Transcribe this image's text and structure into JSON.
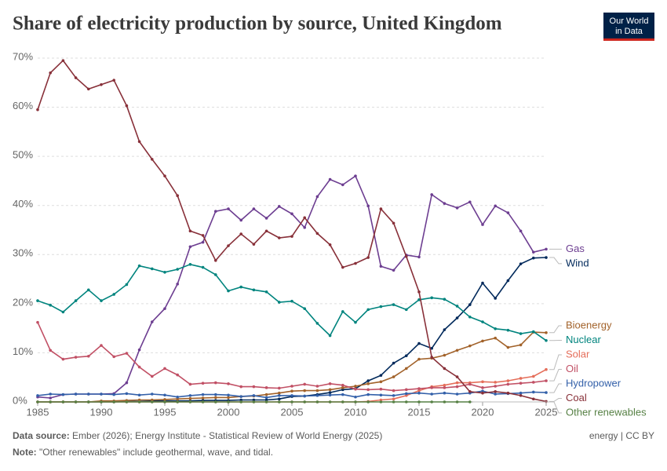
{
  "chart_data": {
    "type": "line",
    "title": "Share of electricity production by source, United Kingdom",
    "logo": [
      "Our World",
      "in Data"
    ],
    "x": [
      1985,
      1986,
      1987,
      1988,
      1989,
      1990,
      1991,
      1992,
      1993,
      1994,
      1995,
      1996,
      1997,
      1998,
      1999,
      2000,
      2001,
      2002,
      2003,
      2004,
      2005,
      2006,
      2007,
      2008,
      2009,
      2010,
      2011,
      2012,
      2013,
      2014,
      2015,
      2016,
      2017,
      2018,
      2019,
      2020,
      2021,
      2022,
      2023,
      2024,
      2025
    ],
    "xlim": [
      1985,
      2025
    ],
    "xticks": [
      1985,
      1990,
      1995,
      2000,
      2005,
      2010,
      2015,
      2020,
      2025
    ],
    "ylim": [
      0,
      70
    ],
    "yticks": [
      {
        "value": 0,
        "label": "0%"
      },
      {
        "value": 10,
        "label": "10%"
      },
      {
        "value": 20,
        "label": "20%"
      },
      {
        "value": 30,
        "label": "30%"
      },
      {
        "value": 40,
        "label": "40%"
      },
      {
        "value": 50,
        "label": "50%"
      },
      {
        "value": 60,
        "label": "60%"
      },
      {
        "value": 70,
        "label": "70%"
      }
    ],
    "grid": true,
    "series": [
      {
        "name": "Gas",
        "color": "#6d3e91",
        "values": [
          1.0,
          0.8,
          1.5,
          1.6,
          1.6,
          1.6,
          1.7,
          3.9,
          10.6,
          16.3,
          19,
          24,
          31.6,
          32.5,
          38.8,
          39.3,
          37,
          39.3,
          37.4,
          39.8,
          38.3,
          35.5,
          41.8,
          45.3,
          44.2,
          46,
          39.9,
          27.6,
          26.8,
          29.9,
          29.5,
          42.2,
          40.4,
          39.5,
          40.7,
          36.1,
          39.9,
          38.5,
          34.8,
          30.5,
          31.1
        ]
      },
      {
        "name": "Wind",
        "color": "#00295b",
        "values": [
          0,
          0,
          0,
          0,
          0,
          0,
          0,
          0.1,
          0.1,
          0.2,
          0.2,
          0.2,
          0.2,
          0.3,
          0.3,
          0.3,
          0.4,
          0.4,
          0.4,
          0.6,
          1.1,
          1.2,
          1.5,
          1.9,
          2.5,
          2.7,
          4.3,
          5.4,
          7.9,
          9.4,
          11.9,
          10.9,
          14.7,
          17.1,
          19.8,
          24.2,
          21.1,
          24.7,
          28.1,
          29.3,
          29.4
        ]
      },
      {
        "name": "Bioenergy",
        "color": "#a2622a",
        "values": [
          0,
          0,
          0,
          0,
          0,
          0.2,
          0.2,
          0.3,
          0.4,
          0.4,
          0.5,
          0.6,
          0.7,
          0.8,
          0.9,
          0.9,
          1.1,
          1.2,
          1.5,
          1.8,
          2.2,
          2.3,
          2.3,
          2.5,
          2.9,
          3.2,
          3.7,
          4.1,
          5.1,
          6.8,
          8.7,
          8.9,
          9.5,
          10.5,
          11.4,
          12.4,
          13,
          11.1,
          11.6,
          14.2,
          14.1
        ]
      },
      {
        "name": "Nuclear",
        "color": "#00847e",
        "values": [
          20.6,
          19.7,
          18.3,
          20.6,
          22.8,
          20.6,
          21.9,
          23.9,
          27.7,
          27.1,
          26.4,
          27,
          28,
          27.4,
          25.9,
          22.6,
          23.4,
          22.8,
          22.4,
          20.3,
          20.5,
          19,
          16,
          13.5,
          18.4,
          16.2,
          18.8,
          19.4,
          19.8,
          18.8,
          20.8,
          21.2,
          20.9,
          19.5,
          17.3,
          16.3,
          14.9,
          14.6,
          13.9,
          14.3,
          12.5
        ]
      },
      {
        "name": "Solar",
        "color": "#e56e5a",
        "values": [
          0,
          0,
          0,
          0,
          0,
          0,
          0,
          0,
          0,
          0,
          0,
          0,
          0,
          0,
          0,
          0,
          0,
          0,
          0,
          0,
          0,
          0,
          0,
          0,
          0,
          0,
          0.1,
          0.4,
          0.6,
          1.3,
          2.3,
          3.1,
          3.4,
          3.9,
          3.9,
          4.1,
          4,
          4.3,
          4.8,
          5.2,
          6.6
        ]
      },
      {
        "name": "Oil",
        "color": "#c15065",
        "values": [
          16.2,
          10.5,
          8.7,
          9.1,
          9.3,
          11.5,
          9.2,
          9.9,
          7.1,
          5.2,
          6.8,
          5.5,
          3.6,
          3.8,
          3.9,
          3.7,
          3.1,
          3.1,
          2.9,
          2.8,
          3.2,
          3.6,
          3.2,
          3.7,
          3.4,
          2.6,
          2.5,
          2.6,
          2.3,
          2.5,
          2.7,
          2.9,
          2.9,
          3.1,
          3.6,
          2.9,
          3.2,
          3.6,
          3.8,
          4.0,
          4.3
        ]
      },
      {
        "name": "Hydropower",
        "color": "#3360a9",
        "values": [
          1.3,
          1.6,
          1.5,
          1.6,
          1.6,
          1.6,
          1.5,
          1.7,
          1.4,
          1.6,
          1.4,
          1.0,
          1.3,
          1.5,
          1.5,
          1.4,
          1.1,
          1.3,
          0.9,
          1.3,
          1.3,
          1.2,
          1.3,
          1.4,
          1.5,
          1.0,
          1.5,
          1.4,
          1.3,
          1.7,
          1.8,
          1.6,
          1.8,
          1.6,
          1.8,
          2.2,
          1.6,
          1.7,
          1.8,
          2.0,
          1.9
        ]
      },
      {
        "name": "Coal",
        "color": "#883039",
        "values": [
          59.5,
          67,
          69.5,
          66,
          63.7,
          64.6,
          65.5,
          60.3,
          53,
          49.4,
          46,
          42,
          34.8,
          33.9,
          28.8,
          31.8,
          34.2,
          32.1,
          34.8,
          33.4,
          33.7,
          37.5,
          34.3,
          32,
          27.4,
          28.2,
          29.4,
          39.3,
          36.4,
          29.6,
          22.4,
          9.1,
          6.8,
          5.1,
          2.1,
          1.8,
          2.1,
          1.8,
          1.3,
          0.6,
          0.1
        ]
      },
      {
        "name": "Other renewables",
        "color": "#578145",
        "values": [
          0,
          0,
          0,
          0,
          0,
          0,
          0,
          0,
          0,
          0,
          0,
          0,
          0,
          0,
          0,
          0,
          0,
          0,
          0,
          0,
          0,
          0,
          0,
          0,
          0,
          0,
          0,
          0,
          0,
          0,
          0,
          0,
          0,
          0,
          0,
          null,
          null,
          null,
          null,
          null,
          null
        ]
      }
    ],
    "source_label": "Data source:",
    "source": "Ember (2026); Energy Institute - Statistical Review of World Energy (2025)",
    "note_label": "Note:",
    "note": "\"Other renewables\" include geothermal, wave, and tidal.",
    "license": "energy | CC BY"
  }
}
